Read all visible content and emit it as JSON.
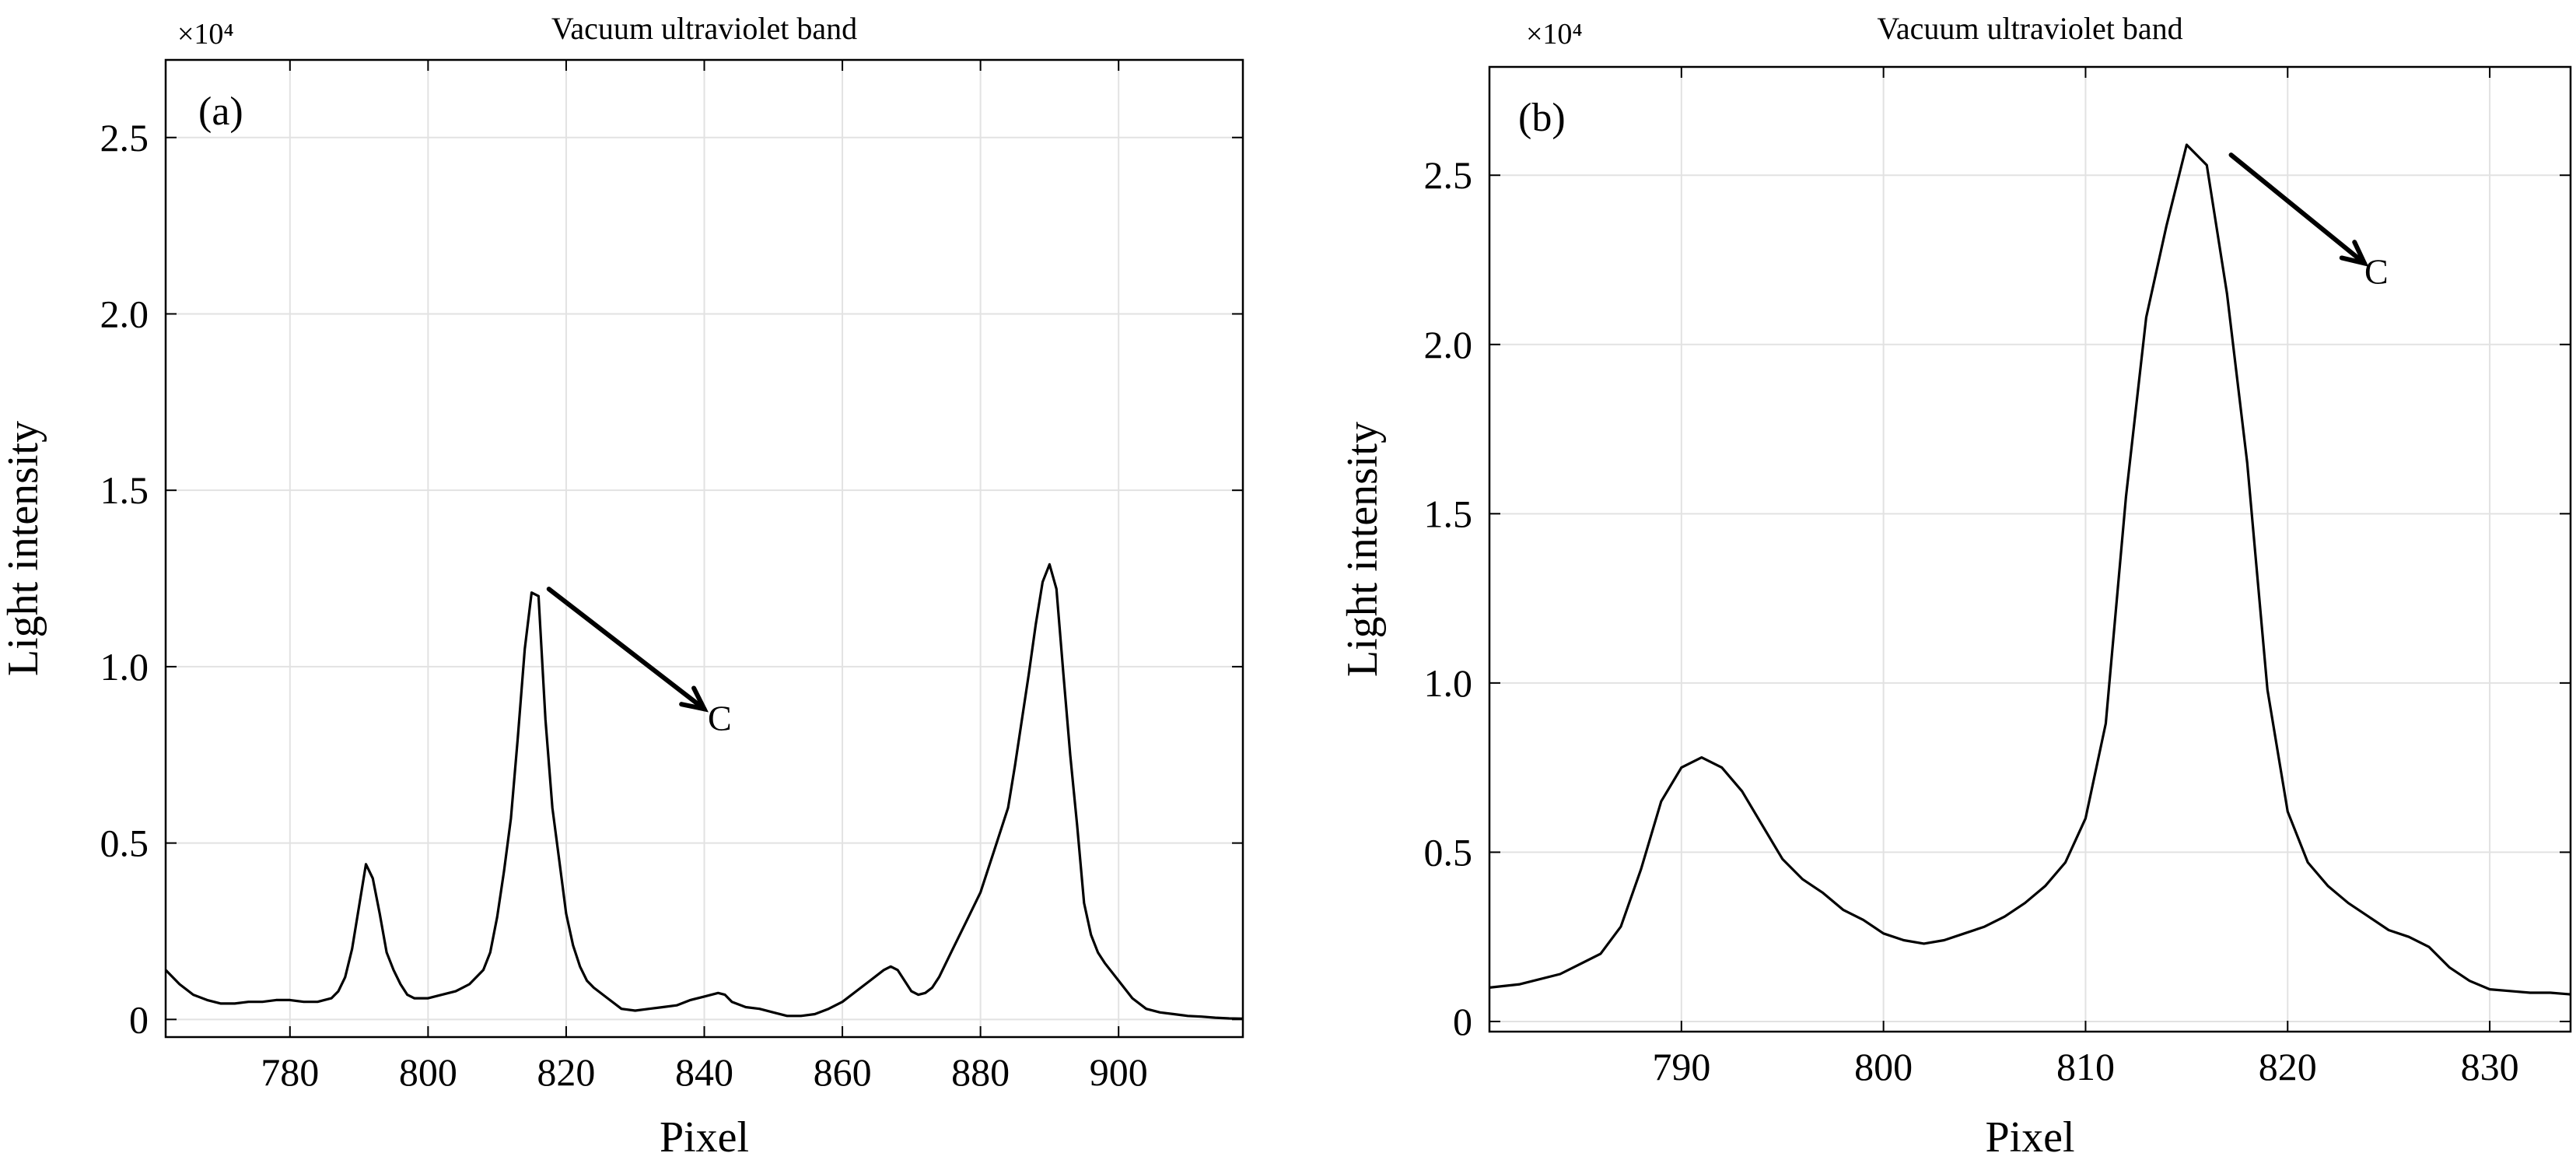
{
  "chart_data": [
    {
      "type": "line",
      "title": "Vacuum ultraviolet band",
      "panel_label": "(a)",
      "xlabel": "Pixel",
      "ylabel": "Light intensity",
      "y_exponent_label": "×10⁴",
      "y_scale_factor": 10000,
      "xlim": [
        762,
        918
      ],
      "ylim": [
        -0.05,
        2.72
      ],
      "xticks": [
        780,
        800,
        820,
        840,
        860,
        880,
        900
      ],
      "yticks": [
        0,
        0.5,
        1.0,
        1.5,
        2.0,
        2.5
      ],
      "ytick_labels": [
        "0",
        "0.5",
        "1.0",
        "1.5",
        "2.0",
        "2.5"
      ],
      "grid": true,
      "series": [
        {
          "x": [
            762,
            764,
            766,
            768,
            770,
            772,
            774,
            776,
            778,
            780,
            782,
            784,
            786,
            787,
            788,
            789,
            790,
            791,
            792,
            793,
            794,
            795,
            796,
            797,
            798,
            800,
            802,
            804,
            806,
            808,
            809,
            810,
            811,
            812,
            813,
            814,
            815,
            816,
            817,
            818,
            819,
            820,
            821,
            822,
            823,
            824,
            826,
            828,
            830,
            832,
            834,
            836,
            838,
            840,
            842,
            843,
            844,
            846,
            848,
            850,
            852,
            854,
            856,
            858,
            860,
            862,
            864,
            866,
            867,
            868,
            869,
            870,
            871,
            872,
            873,
            874,
            876,
            878,
            880,
            882,
            884,
            885,
            886,
            887,
            888,
            889,
            890,
            891,
            892,
            893,
            894,
            895,
            896,
            897,
            898,
            900,
            902,
            904,
            906,
            908,
            910,
            912,
            914,
            916,
            918
          ],
          "y": [
            0.14,
            0.1,
            0.07,
            0.055,
            0.045,
            0.045,
            0.05,
            0.05,
            0.055,
            0.055,
            0.05,
            0.05,
            0.06,
            0.08,
            0.12,
            0.2,
            0.32,
            0.44,
            0.4,
            0.3,
            0.19,
            0.14,
            0.1,
            0.07,
            0.06,
            0.06,
            0.07,
            0.08,
            0.1,
            0.14,
            0.19,
            0.29,
            0.42,
            0.57,
            0.8,
            1.05,
            1.21,
            1.2,
            0.85,
            0.6,
            0.45,
            0.3,
            0.21,
            0.15,
            0.11,
            0.09,
            0.06,
            0.03,
            0.025,
            0.03,
            0.035,
            0.04,
            0.055,
            0.065,
            0.075,
            0.07,
            0.05,
            0.035,
            0.03,
            0.02,
            0.01,
            0.01,
            0.015,
            0.03,
            0.05,
            0.08,
            0.11,
            0.14,
            0.15,
            0.14,
            0.11,
            0.08,
            0.07,
            0.075,
            0.09,
            0.12,
            0.2,
            0.28,
            0.36,
            0.48,
            0.6,
            0.72,
            0.85,
            0.98,
            1.12,
            1.24,
            1.29,
            1.22,
            0.98,
            0.75,
            0.55,
            0.33,
            0.24,
            0.19,
            0.16,
            0.11,
            0.06,
            0.03,
            0.02,
            0.015,
            0.01,
            0.008,
            0.005,
            0.003,
            0.002
          ]
        }
      ],
      "annotations": [
        {
          "text": "C",
          "arrow_from": [
            817.5,
            1.22
          ],
          "arrow_to": [
            840,
            0.88
          ],
          "text_at": [
            840.5,
            0.82
          ]
        }
      ]
    },
    {
      "type": "line",
      "title": "Vacuum ultraviolet band",
      "panel_label": "(b)",
      "xlabel": "Pixel",
      "ylabel": "Light intensity",
      "y_exponent_label": "×10⁴",
      "y_scale_factor": 10000,
      "xlim": [
        780.5,
        834
      ],
      "ylim": [
        -0.03,
        2.82
      ],
      "xticks": [
        790,
        800,
        810,
        820,
        830
      ],
      "yticks": [
        0,
        0.5,
        1.0,
        1.5,
        2.0,
        2.5
      ],
      "ytick_labels": [
        "0",
        "0.5",
        "1.0",
        "1.5",
        "2.0",
        "2.5"
      ],
      "grid": true,
      "series": [
        {
          "x": [
            780.5,
            782,
            784,
            786,
            787,
            788,
            789,
            790,
            791,
            792,
            793,
            794,
            795,
            796,
            797,
            798,
            799,
            800,
            801,
            802,
            803,
            804,
            805,
            806,
            807,
            808,
            809,
            810,
            811,
            812,
            813,
            814,
            815,
            816,
            817,
            818,
            819,
            820,
            821,
            822,
            823,
            824,
            825,
            826,
            827,
            828,
            829,
            830,
            831,
            832,
            833,
            834
          ],
          "y": [
            0.1,
            0.11,
            0.14,
            0.2,
            0.28,
            0.45,
            0.65,
            0.75,
            0.78,
            0.75,
            0.68,
            0.58,
            0.48,
            0.42,
            0.38,
            0.33,
            0.3,
            0.26,
            0.24,
            0.23,
            0.24,
            0.26,
            0.28,
            0.31,
            0.35,
            0.4,
            0.47,
            0.6,
            0.88,
            1.55,
            2.08,
            2.35,
            2.59,
            2.53,
            2.15,
            1.65,
            0.98,
            0.62,
            0.47,
            0.4,
            0.35,
            0.31,
            0.27,
            0.25,
            0.22,
            0.16,
            0.12,
            0.095,
            0.09,
            0.085,
            0.085,
            0.08
          ]
        }
      ],
      "annotations": [
        {
          "text": "C",
          "arrow_from": [
            817.2,
            2.56
          ],
          "arrow_to": [
            823.8,
            2.24
          ],
          "text_at": [
            823.8,
            2.18
          ]
        }
      ]
    }
  ]
}
